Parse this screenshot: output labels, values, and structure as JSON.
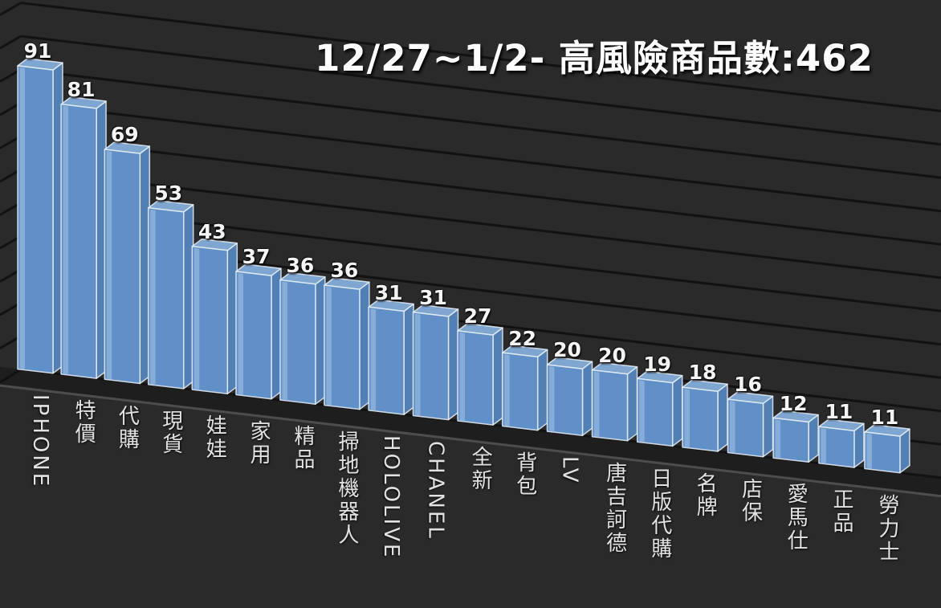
{
  "chart_data": {
    "type": "bar",
    "title": "12/27~1/2- 高風險商品數:462",
    "categories": [
      "IPHONE",
      "特價",
      "代購",
      "現貨",
      "娃娃",
      "家用",
      "精品",
      "掃地機器人",
      "HOLOLIVE",
      "CHANEL",
      "全新",
      "背包",
      "LV",
      "唐吉訶德",
      "日版代購",
      "名牌",
      "店保",
      "愛馬仕",
      "正品",
      "勞力士"
    ],
    "values": [
      91,
      81,
      69,
      53,
      43,
      37,
      36,
      36,
      31,
      31,
      27,
      22,
      20,
      20,
      19,
      18,
      16,
      12,
      11,
      11
    ],
    "xlabel": "",
    "ylabel": "",
    "ylim": [
      0,
      110
    ],
    "grid_step": 10,
    "grid_visible": true,
    "legend": "none",
    "style": "3d-perspective-dark",
    "colors": {
      "background": "#2a2a2a",
      "gridline": "#121212",
      "floor": "#1e1e1e",
      "floor_edge": "#4d4d4d",
      "bar_front": "#6090c7",
      "bar_front_highlight": "#93b6dd",
      "bar_top": "#7ea6d1",
      "bar_side": "#527fb4",
      "bar_edge": "#e9f0f7",
      "title_text": "#ffffff",
      "value_text": "#f4f4f4",
      "category_text": "#e2e2e2"
    }
  }
}
